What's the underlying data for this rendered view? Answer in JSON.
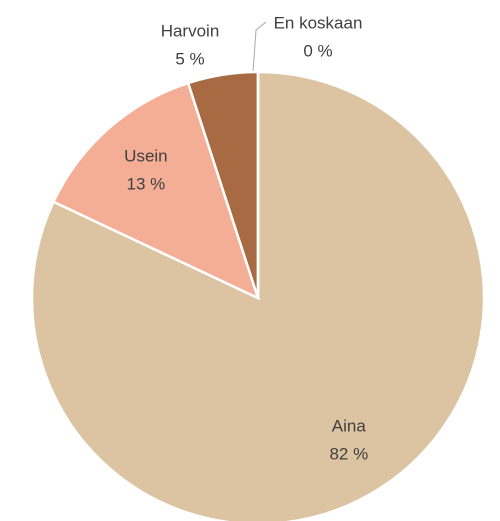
{
  "chart_data": {
    "type": "pie",
    "categories": [
      "Aina",
      "Usein",
      "Harvoin",
      "En koskaan"
    ],
    "values": [
      82,
      13,
      5,
      0
    ],
    "value_labels": [
      "82 %",
      "13 %",
      "5 %",
      "0 %"
    ],
    "colors": [
      "#dcc3a1",
      "#f4ae96",
      "#a86a42",
      "#b4c7d8"
    ]
  }
}
